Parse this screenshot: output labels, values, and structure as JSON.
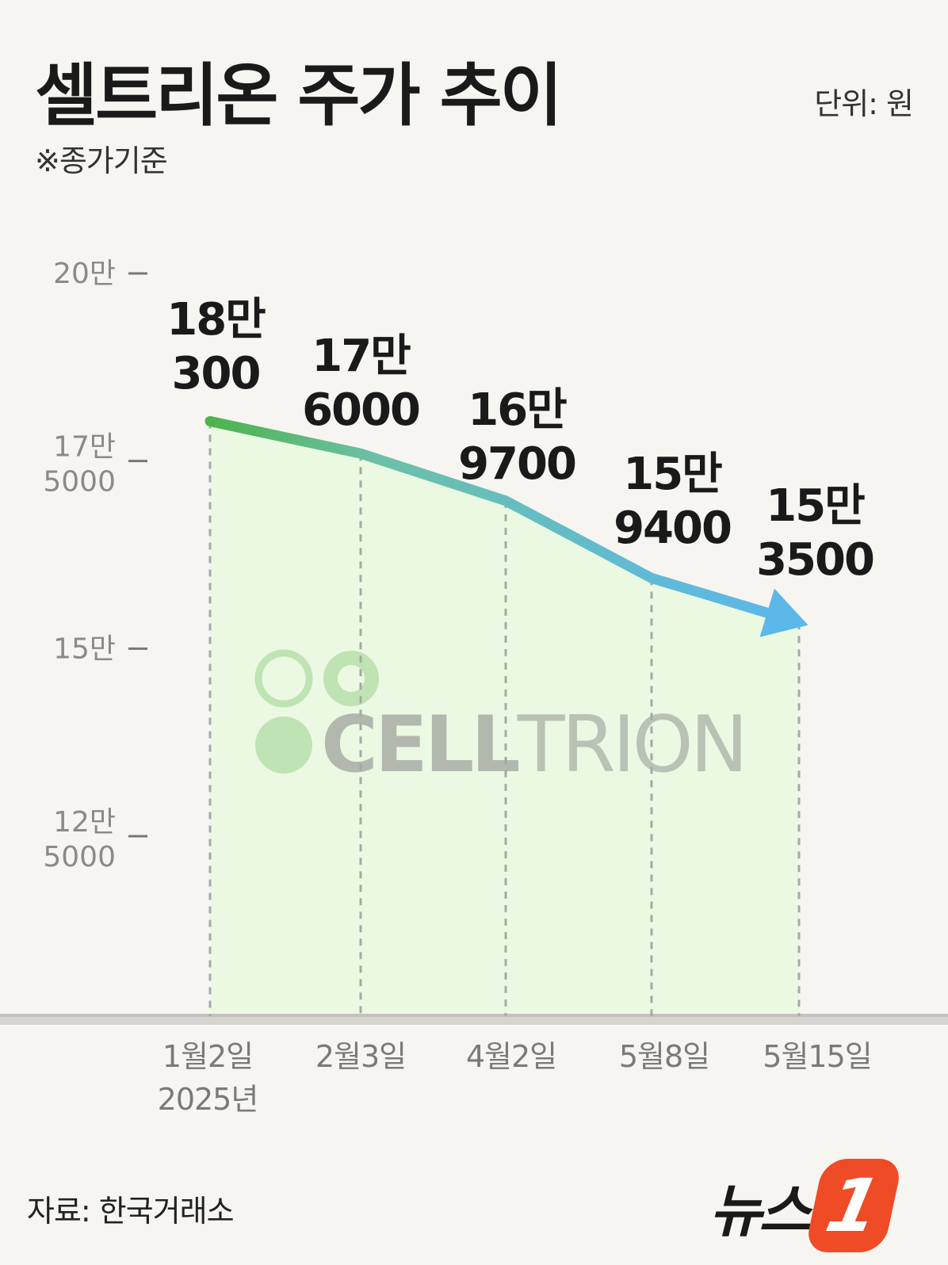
{
  "header": {
    "title": "셀트리온 주가 추이",
    "note": "※종가기준",
    "unit": "단위: 원"
  },
  "footer": {
    "source": "자료: 한국거래소",
    "logo_text": "뉴스",
    "logo_badge": "1"
  },
  "watermark": {
    "word_bold": "CELL",
    "word_light": "TRION"
  },
  "colors": {
    "line_start": "#4db34d",
    "line_end": "#5cb8e8",
    "area_fill": "#ebf9e3",
    "watermark_bold": "#b3b8ae",
    "watermark_circle": "#bfe3b3"
  },
  "chart_data": {
    "type": "line",
    "x": [
      "1월2일",
      "2월3일",
      "4월2일",
      "5월8일",
      "5월15일"
    ],
    "x_labels": [
      [
        "1월2일",
        "2025년"
      ],
      [
        "2월3일"
      ],
      [
        "4월2일"
      ],
      [
        "5월8일"
      ],
      [
        "5월15일"
      ]
    ],
    "values": [
      180300,
      176000,
      169700,
      159400,
      153500
    ],
    "value_labels": [
      [
        "18만",
        "300"
      ],
      [
        "17만",
        "6000"
      ],
      [
        "16만",
        "9700"
      ],
      [
        "15만",
        "9400"
      ],
      [
        "15만",
        "3500"
      ]
    ],
    "y_ticks": [
      {
        "value": 200000,
        "label": [
          "20만"
        ]
      },
      {
        "value": 175000,
        "label": [
          "17만",
          "5000"
        ]
      },
      {
        "value": 150000,
        "label": [
          "15만"
        ]
      },
      {
        "value": 125000,
        "label": [
          "12만",
          "5000"
        ]
      }
    ],
    "ylim": [
      100000,
      200000
    ],
    "grid": false
  }
}
